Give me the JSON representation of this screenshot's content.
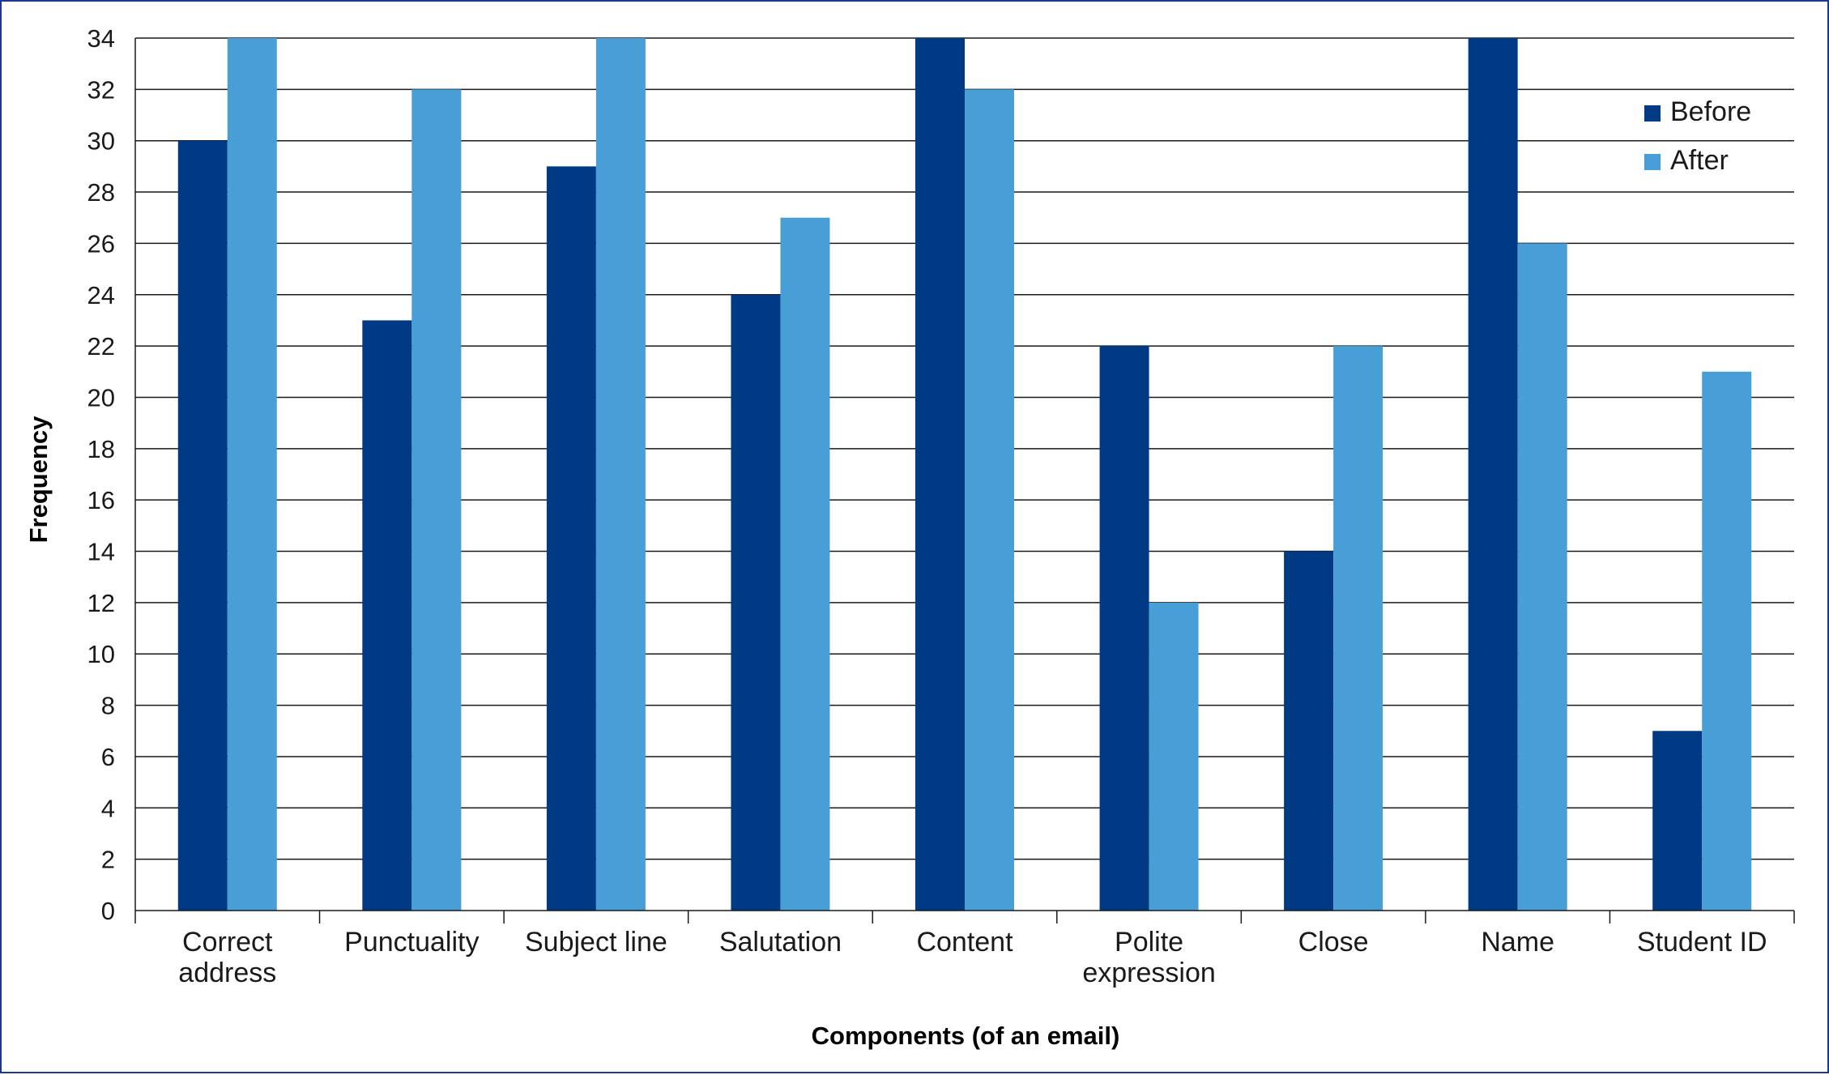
{
  "chart_data": {
    "type": "bar",
    "title": "",
    "xlabel": "Components (of an email)",
    "ylabel": "Frequency",
    "ylim": [
      0,
      34
    ],
    "yticks": [
      0,
      2,
      4,
      6,
      8,
      10,
      12,
      14,
      16,
      18,
      20,
      22,
      24,
      26,
      28,
      30,
      32,
      34
    ],
    "grid": true,
    "legend_position": "top-right",
    "categories": [
      [
        "Correct",
        "address"
      ],
      [
        "Punctuality"
      ],
      [
        "Subject line"
      ],
      [
        "Salutation"
      ],
      [
        "Content"
      ],
      [
        "Polite",
        "expression"
      ],
      [
        "Close"
      ],
      [
        "Name"
      ],
      [
        "Student ID"
      ]
    ],
    "series": [
      {
        "name": "Before",
        "color": "#003a84",
        "values": [
          30,
          23,
          29,
          24,
          34,
          22,
          14,
          34,
          7
        ]
      },
      {
        "name": "After",
        "color": "#479fd5",
        "values": [
          34,
          32,
          34,
          27,
          32,
          12,
          22,
          26,
          21
        ]
      }
    ]
  }
}
